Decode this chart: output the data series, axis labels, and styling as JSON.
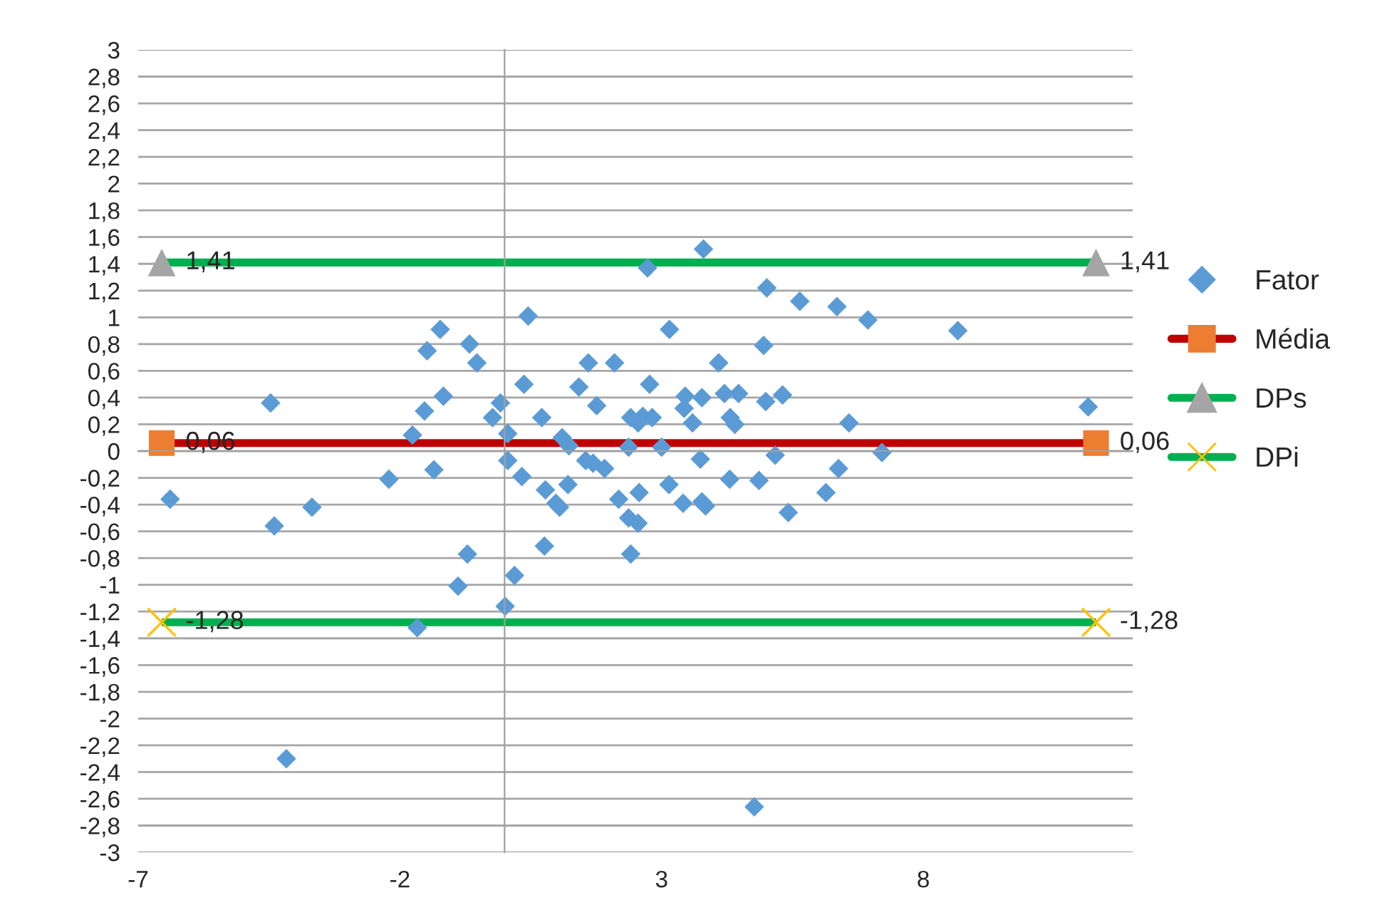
{
  "chart_data": {
    "type": "scatter",
    "xlim": [
      -7,
      12
    ],
    "xticks": [
      -7,
      -2,
      3,
      8
    ],
    "ylim": [
      -3,
      3
    ],
    "yticks": [
      -3,
      {
        "value": -2.8,
        "label": "-2,8"
      },
      {
        "value": -2.6,
        "label": "-2,6"
      },
      {
        "value": -2.4,
        "label": "-2,4"
      },
      {
        "value": -2.2,
        "label": "-2,2"
      },
      -2,
      {
        "value": -1.8,
        "label": "-1,8"
      },
      {
        "value": -1.6,
        "label": "-1,6"
      },
      {
        "value": -1.4,
        "label": "-1,4"
      },
      {
        "value": -1.2,
        "label": "-1,2"
      },
      -1,
      {
        "value": -0.8,
        "label": "-0,8"
      },
      {
        "value": -0.6,
        "label": "-0,6"
      },
      {
        "value": -0.4,
        "label": "-0,4"
      },
      {
        "value": -0.2,
        "label": "-0,2"
      },
      0,
      {
        "value": 0.2,
        "label": "0,2"
      },
      {
        "value": 0.4,
        "label": "0,4"
      },
      {
        "value": 0.6,
        "label": "0,6"
      },
      {
        "value": 0.8,
        "label": "0,8"
      },
      1,
      {
        "value": 1.2,
        "label": "1,2"
      },
      {
        "value": 1.4,
        "label": "1,4"
      },
      {
        "value": 1.6,
        "label": "1,6"
      },
      {
        "value": 1.8,
        "label": "1,8"
      },
      2,
      {
        "value": 2.2,
        "label": "2,2"
      },
      {
        "value": 2.4,
        "label": "2,4"
      },
      {
        "value": 2.6,
        "label": "2,6"
      },
      {
        "value": 2.8,
        "label": "2,8"
      },
      3
    ],
    "grid": "y",
    "legend": "right",
    "series": [
      {
        "name": "Fator",
        "type": "scatter",
        "marker": "diamond",
        "color": "#5b9bd5",
        "x": [
          2.73,
          0.45,
          -1.23,
          -0.67,
          -0.53,
          -1.48,
          -1.17,
          -1.53,
          -1.76,
          -2.21,
          -1.35,
          -0.71,
          -0.89,
          -1.67,
          -0.23,
          -0.08,
          0.06,
          0.06,
          0.33,
          0.37,
          0.71,
          0.78,
          0.98,
          1.05,
          1.21,
          1.1,
          1.23,
          1.55,
          1.69,
          1.91,
          1.42,
          1.6,
          2.1,
          1.76,
          0.76,
          0.19,
          0.01,
          2.41,
          2.55,
          2.37,
          2.18,
          2.37,
          2.55,
          2.57,
          2.41,
          2.77,
          2.64,
          3.8,
          5.01,
          5.64,
          6.35,
          6.94,
          3.15,
          4.95,
          4.09,
          3.45,
          3.77,
          4.2,
          4.47,
          4.99,
          5.31,
          3.43,
          3.59,
          4.31,
          4.4,
          6.58,
          2.82,
          3.0,
          3.74,
          5.17,
          7.21,
          3.14,
          4.3,
          4.86,
          6.38,
          6.14,
          3.41,
          3.77,
          3.84,
          5.42,
          8.66,
          11.15,
          -4.47,
          -6.39,
          -4.4,
          -3.68,
          -4.17,
          4.77
        ],
        "values": [
          1.37,
          1.01,
          0.91,
          0.8,
          0.66,
          0.75,
          0.41,
          0.3,
          0.12,
          -0.21,
          -0.14,
          -0.77,
          -1.01,
          -1.32,
          0.25,
          0.36,
          0.13,
          -0.07,
          -0.19,
          0.5,
          0.25,
          -0.29,
          -0.39,
          -0.42,
          -0.25,
          0.1,
          0.04,
          -0.07,
          -0.09,
          -0.13,
          0.48,
          0.66,
          0.66,
          0.34,
          -0.71,
          -0.93,
          -1.16,
          0.25,
          0.21,
          0.03,
          -0.36,
          -0.5,
          -0.54,
          -0.31,
          -0.77,
          0.5,
          0.26,
          1.51,
          1.22,
          1.12,
          1.08,
          0.98,
          0.91,
          0.79,
          0.66,
          0.41,
          0.4,
          0.43,
          0.43,
          0.37,
          0.42,
          0.32,
          0.21,
          0.25,
          0.2,
          0.21,
          0.25,
          0.03,
          -0.06,
          -0.03,
          -0.01,
          -0.25,
          -0.21,
          -0.22,
          -0.13,
          -0.31,
          -0.39,
          -0.38,
          -0.41,
          -0.46,
          0.9,
          0.33,
          0.36,
          -0.36,
          -0.56,
          -0.42,
          -2.3,
          -2.66
        ]
      },
      {
        "name": "Média",
        "type": "line",
        "marker": "square",
        "color": "#c00000",
        "colors": [
          "#ed7d31",
          "#ed7d31"
        ],
        "x": [
          -6.55,
          11.3
        ],
        "values": [
          0.06,
          0.06
        ],
        "value_labels": [
          "0,06",
          "0,06"
        ]
      },
      {
        "name": "DPs",
        "type": "line",
        "marker": "triangle",
        "color": "#00b050",
        "colors": [
          "#a5a5a5",
          "#a5a5a5"
        ],
        "x": [
          -6.55,
          11.3
        ],
        "values": [
          1.41,
          1.41
        ],
        "value_labels": [
          "1,41",
          "1,41"
        ]
      },
      {
        "name": "DPi",
        "type": "line",
        "marker": "cross",
        "color": "#00b050",
        "colors": [
          "#ffc000",
          "#ffc000"
        ],
        "x": [
          -6.55,
          11.3
        ],
        "values": [
          -1.28,
          -1.28
        ],
        "value_labels": [
          "-1,28",
          "-1,28"
        ]
      }
    ]
  }
}
